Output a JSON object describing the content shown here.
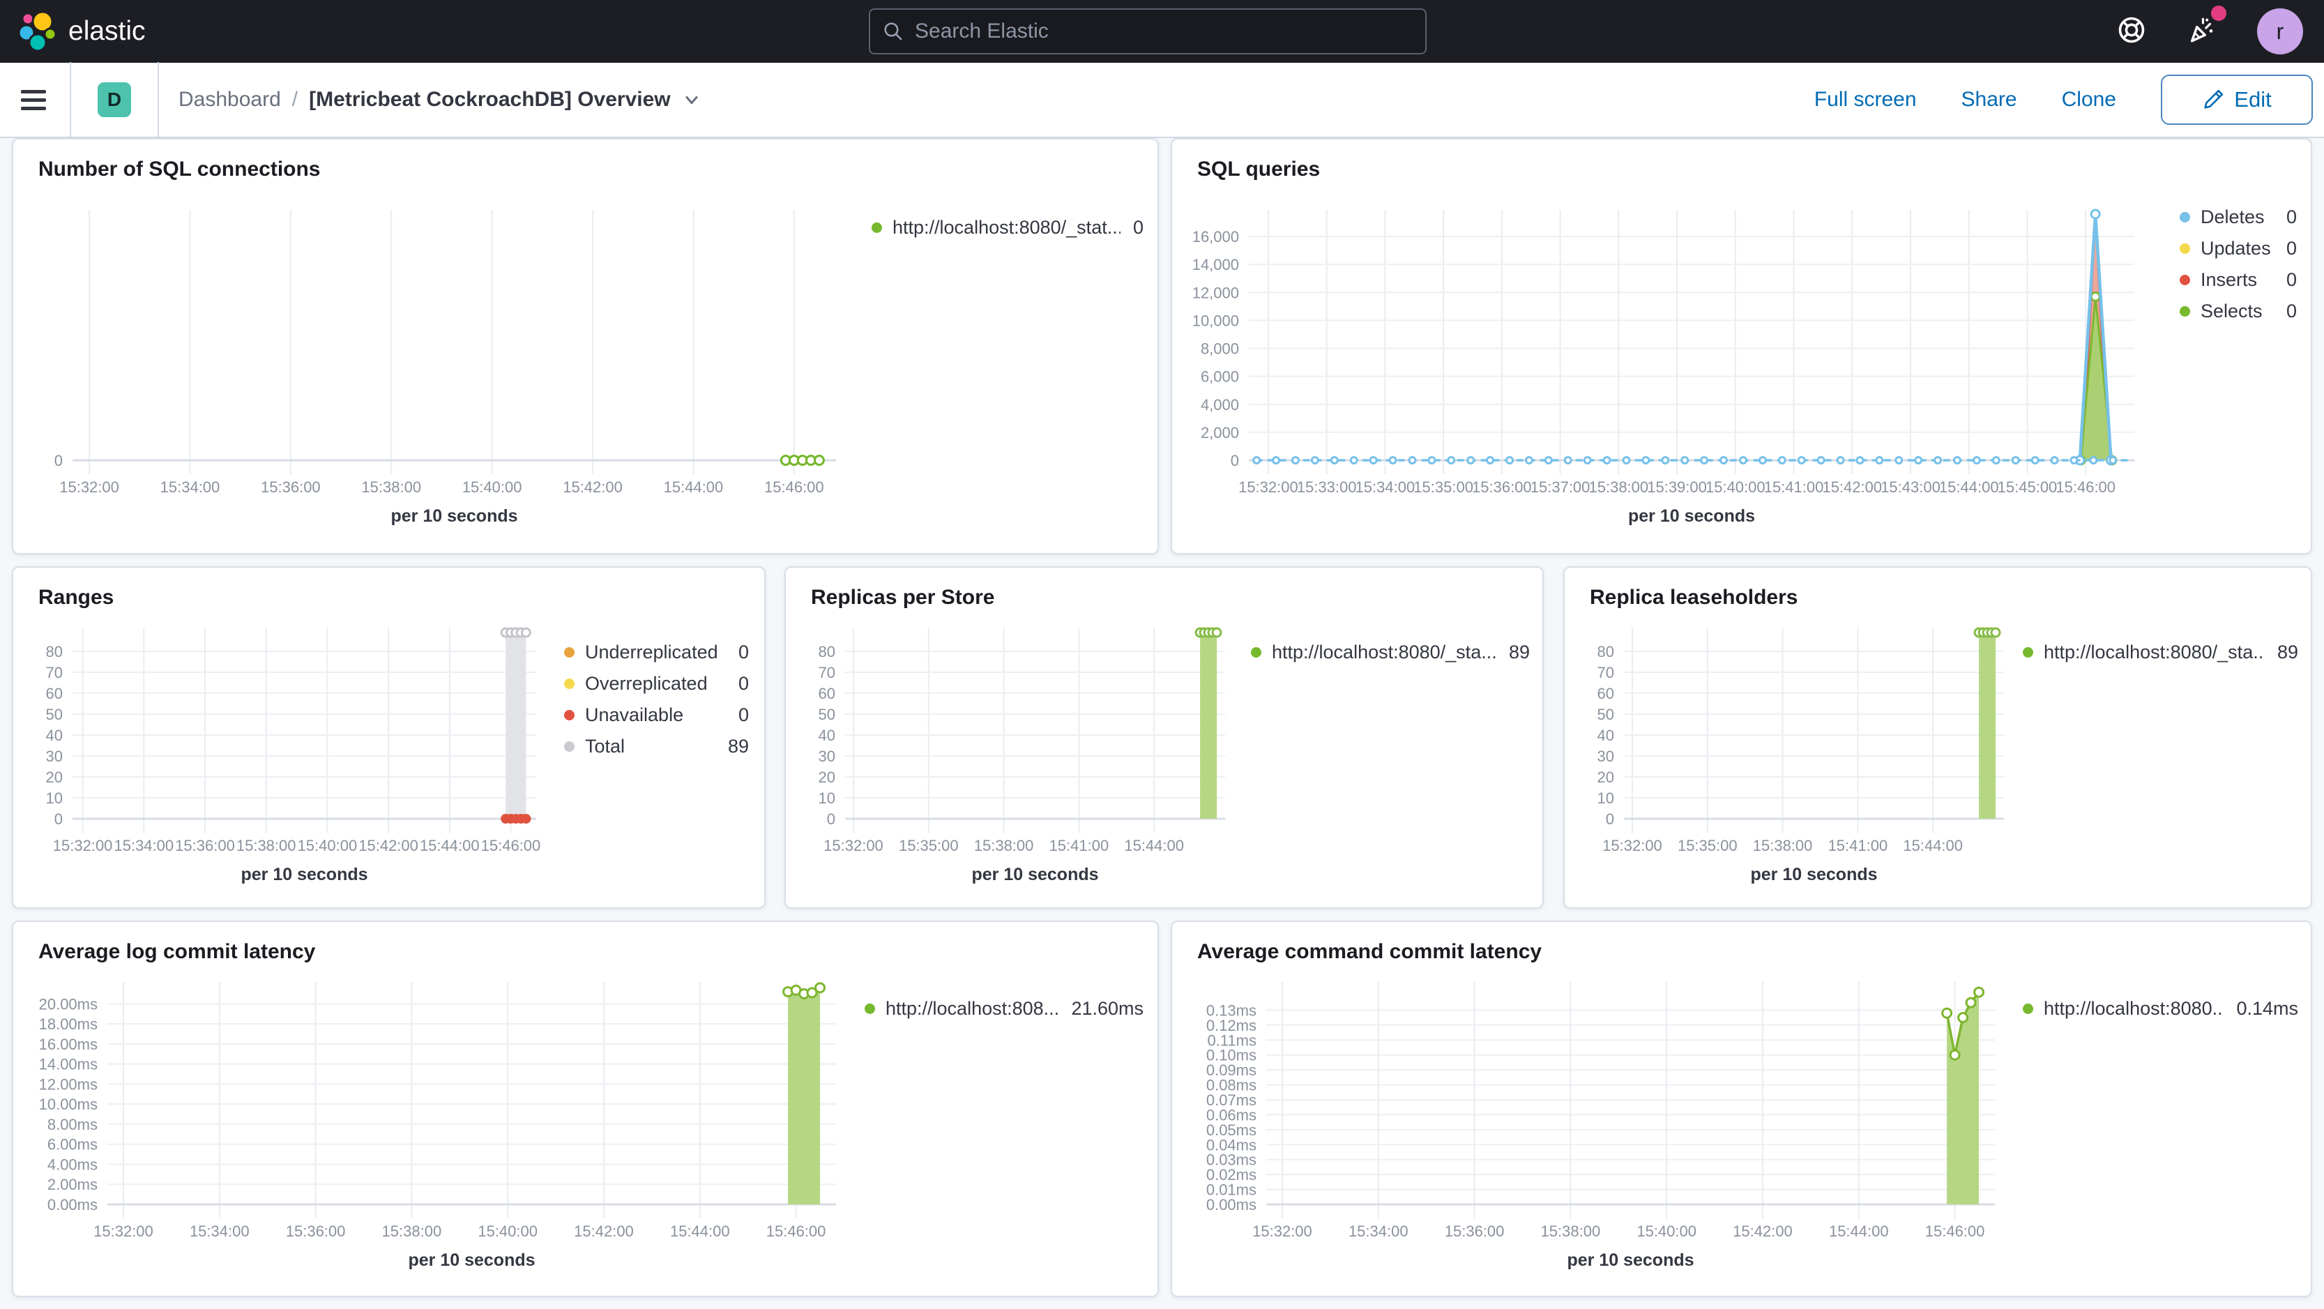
{
  "header": {
    "logo_text": "elastic",
    "search_placeholder": "Search Elastic",
    "avatar_initial": "r"
  },
  "toolbar": {
    "space_initial": "D",
    "breadcrumb_root": "Dashboard",
    "breadcrumb_sep": "/",
    "title": "[Metricbeat CockroachDB] Overview",
    "actions": [
      "Full screen",
      "Share",
      "Clone"
    ],
    "edit_label": "Edit"
  },
  "colors": {
    "header_bg": "#1D1E24",
    "primary_blue": "#006BB4",
    "badge_teal": "#4DC3AE",
    "accent_pink": "#E23D81",
    "avatar_purple": "#C9A4E8",
    "series_green": "#77B92E",
    "series_blue": "#76C1EA",
    "series_red": "#E0523F",
    "series_yellow": "#F3D94B",
    "series_orange": "#E8A23C",
    "series_gray": "#C9CBD0"
  },
  "panels": [
    {
      "title": "Number of SQL connections",
      "legend": {
        "items": [
          {
            "label": "http://localhost:8080/_stat...",
            "value": "0",
            "color": "#77B92E"
          }
        ]
      }
    },
    {
      "title": "SQL queries",
      "legend": {
        "items": [
          {
            "label": "Deletes",
            "value": "0",
            "color": "#76C1EA"
          },
          {
            "label": "Updates",
            "value": "0",
            "color": "#F3D94B"
          },
          {
            "label": "Inserts",
            "value": "0",
            "color": "#E0523F"
          },
          {
            "label": "Selects",
            "value": "0",
            "color": "#77B92E"
          }
        ]
      }
    },
    {
      "title": "Ranges",
      "legend": {
        "items": [
          {
            "label": "Underreplicated",
            "value": "0",
            "color": "#E8A23C"
          },
          {
            "label": "Overreplicated",
            "value": "0",
            "color": "#F3D94B"
          },
          {
            "label": "Unavailable",
            "value": "0",
            "color": "#E0523F"
          },
          {
            "label": "Total",
            "value": "89",
            "color": "#C9CBD0"
          }
        ]
      }
    },
    {
      "title": "Replicas per Store",
      "legend": {
        "items": [
          {
            "label": "http://localhost:8080/_sta...",
            "value": "89",
            "color": "#77B92E"
          }
        ]
      }
    },
    {
      "title": "Replica leaseholders",
      "legend": {
        "items": [
          {
            "label": "http://localhost:8080/_sta...",
            "value": "89",
            "color": "#77B92E"
          }
        ]
      }
    },
    {
      "title": "Average log commit latency",
      "legend": {
        "items": [
          {
            "label": "http://localhost:808...",
            "value": "21.60ms",
            "color": "#77B92E"
          }
        ]
      }
    },
    {
      "title": "Average command commit latency",
      "legend": {
        "items": [
          {
            "label": "http://localhost:8080...",
            "value": "0.14ms",
            "color": "#77B92E"
          }
        ]
      }
    }
  ],
  "chart_data": [
    {
      "id": "sql-connections",
      "type": "line",
      "title": "Number of SQL connections",
      "xlabel": "per 10 seconds",
      "x_domain": [
        "15:31:40",
        "15:46:50"
      ],
      "ylim": [
        0,
        1
      ],
      "y_max": 1,
      "x_ticks": [
        "15:32:00",
        "15:34:00",
        "15:36:00",
        "15:38:00",
        "15:40:00",
        "15:42:00",
        "15:44:00",
        "15:46:00"
      ],
      "y_ticks": [
        {
          "label": "0",
          "v": 0
        }
      ],
      "series": [
        {
          "name": "http://localhost:8080/_stat...",
          "type": "line",
          "stroke": "#74B62B",
          "width": 4,
          "markers": "hollow",
          "marker_r": 6.5,
          "points": [
            [
              "15:45:50",
              0
            ],
            [
              "15:46:00",
              0
            ],
            [
              "15:46:10",
              0
            ],
            [
              "15:46:20",
              0
            ],
            [
              "15:46:30",
              0
            ]
          ]
        }
      ]
    },
    {
      "id": "sql-queries",
      "type": "area",
      "title": "SQL queries",
      "xlabel": "per 10 seconds",
      "x_domain": [
        "15:31:40",
        "15:46:50"
      ],
      "ylim": [
        0,
        17700
      ],
      "y_max": 17700,
      "x_ticks": [
        "15:32:00",
        "15:33:00",
        "15:34:00",
        "15:35:00",
        "15:36:00",
        "15:37:00",
        "15:38:00",
        "15:39:00",
        "15:40:00",
        "15:41:00",
        "15:42:00",
        "15:43:00",
        "15:44:00",
        "15:45:00",
        "15:46:00"
      ],
      "y_ticks": [
        {
          "label": "0",
          "v": 0
        },
        {
          "label": "2,000",
          "v": 2000
        },
        {
          "label": "4,000",
          "v": 4000
        },
        {
          "label": "6,000",
          "v": 6000
        },
        {
          "label": "8,000",
          "v": 8000
        },
        {
          "label": "10,000",
          "v": 10000
        },
        {
          "label": "12,000",
          "v": 12000
        },
        {
          "label": "14,000",
          "v": 14000
        },
        {
          "label": "16,000",
          "v": 16000
        }
      ],
      "series": [
        {
          "name": "Updates",
          "type": "area",
          "stroke": "#E8C22C",
          "width": 2.5,
          "fill": "#F3D94B",
          "fill_opacity": 1,
          "points": [
            [
              "15:45:58",
              0
            ],
            [
              "15:46:10",
              16900
            ],
            [
              "15:46:22",
              0
            ]
          ]
        },
        {
          "name": "Inserts",
          "type": "area",
          "stroke": "#D4604F",
          "width": 2.5,
          "fill": "#F0A79B",
          "fill_opacity": 1,
          "points": [
            [
              "15:45:57",
              0
            ],
            [
              "15:46:10",
              17350
            ],
            [
              "15:46:23",
              0
            ]
          ]
        },
        {
          "name": "Selects",
          "type": "area",
          "stroke": "#7FB62F",
          "width": 3,
          "fill": "#ABD073",
          "fill_opacity": 1,
          "markers": "hollow",
          "marker_r": 6,
          "points": [
            [
              "15:45:55",
              0
            ],
            [
              "15:46:10",
              11700
            ],
            [
              "15:46:27",
              0
            ]
          ]
        },
        {
          "name": "Deletes",
          "type": "line",
          "stroke": "#76C1EA",
          "width": 4.5,
          "markers": "hollow",
          "marker_r": 6,
          "points": [
            [
              "15:45:54",
              0
            ],
            [
              "15:46:10",
              17600
            ],
            [
              "15:46:26",
              0
            ]
          ]
        },
        {
          "name": "Deletes",
          "type": "line",
          "stroke": "#76C1EA",
          "width": 3.5,
          "dashed": true,
          "markers": "hollow",
          "marker_r": 4.5,
          "marker_every": 20,
          "points": [
            [
              "15:31:48",
              0
            ],
            [
              "15:46:44",
              0
            ]
          ]
        }
      ]
    },
    {
      "id": "ranges",
      "type": "area",
      "title": "Ranges",
      "xlabel": "per 10 seconds",
      "x_domain": [
        "15:31:40",
        "15:46:50"
      ],
      "ylim": [
        0,
        90
      ],
      "y_max": 90,
      "x_ticks": [
        "15:32:00",
        "15:34:00",
        "15:36:00",
        "15:38:00",
        "15:40:00",
        "15:42:00",
        "15:44:00",
        "15:46:00"
      ],
      "y_ticks": [
        {
          "label": "0",
          "v": 0
        },
        {
          "label": "10",
          "v": 10
        },
        {
          "label": "20",
          "v": 20
        },
        {
          "label": "30",
          "v": 30
        },
        {
          "label": "40",
          "v": 40
        },
        {
          "label": "50",
          "v": 50
        },
        {
          "label": "60",
          "v": 60
        },
        {
          "label": "70",
          "v": 70
        },
        {
          "label": "80",
          "v": 80
        }
      ],
      "series": [
        {
          "name": "Total",
          "type": "area",
          "stroke": "#DCDDE1",
          "width": 2,
          "fill": "#E2E3E6",
          "fill_opacity": 1,
          "markers": "hollow",
          "marker_r": 6,
          "marker_stroke": "#C2C4C9",
          "points": [
            [
              "15:45:50",
              89
            ],
            [
              "15:46:00",
              89
            ],
            [
              "15:46:10",
              89
            ],
            [
              "15:46:20",
              89
            ],
            [
              "15:46:30",
              89
            ]
          ]
        },
        {
          "name": "Underreplicated",
          "type": "line",
          "stroke": "#E8A23C",
          "width": 4,
          "markers": "solid",
          "marker_r": 6,
          "points": [
            [
              "15:45:50",
              0
            ],
            [
              "15:46:00",
              0
            ],
            [
              "15:46:10",
              0
            ],
            [
              "15:46:20",
              0
            ],
            [
              "15:46:30",
              0
            ]
          ]
        },
        {
          "name": "Overreplicated",
          "type": "line",
          "stroke": "#F3D94B",
          "width": 4,
          "markers": "solid",
          "marker_r": 6,
          "points": [
            [
              "15:45:50",
              0
            ],
            [
              "15:46:00",
              0
            ],
            [
              "15:46:10",
              0
            ],
            [
              "15:46:20",
              0
            ],
            [
              "15:46:30",
              0
            ]
          ]
        },
        {
          "name": "Unavailable",
          "type": "line",
          "stroke": "#E0523F",
          "width": 4,
          "markers": "solid",
          "marker_r": 7,
          "points": [
            [
              "15:45:50",
              0
            ],
            [
              "15:46:00",
              0
            ],
            [
              "15:46:10",
              0
            ],
            [
              "15:46:20",
              0
            ],
            [
              "15:46:30",
              0
            ]
          ]
        }
      ]
    },
    {
      "id": "replicas-per-store",
      "type": "area",
      "title": "Replicas per Store",
      "xlabel": "per 10 seconds",
      "x_domain": [
        "15:31:40",
        "15:46:50"
      ],
      "ylim": [
        0,
        90
      ],
      "y_max": 90,
      "x_ticks": [
        "15:32:00",
        "15:35:00",
        "15:38:00",
        "15:41:00",
        "15:44:00"
      ],
      "y_ticks": [
        {
          "label": "0",
          "v": 0
        },
        {
          "label": "10",
          "v": 10
        },
        {
          "label": "20",
          "v": 20
        },
        {
          "label": "30",
          "v": 30
        },
        {
          "label": "40",
          "v": 40
        },
        {
          "label": "50",
          "v": 50
        },
        {
          "label": "60",
          "v": 60
        },
        {
          "label": "70",
          "v": 70
        },
        {
          "label": "80",
          "v": 80
        }
      ],
      "series": [
        {
          "name": "http://localhost:8080/_sta...",
          "type": "area",
          "stroke": "#A9CD74",
          "width": 2,
          "fill": "#B5D784",
          "fill_opacity": 1,
          "markers": "hollow",
          "marker_r": 6,
          "marker_stroke": "#85BC47",
          "points": [
            [
              "15:45:50",
              89
            ],
            [
              "15:46:00",
              89
            ],
            [
              "15:46:10",
              89
            ],
            [
              "15:46:20",
              89
            ],
            [
              "15:46:30",
              89
            ]
          ]
        }
      ]
    },
    {
      "id": "replica-leaseholders",
      "type": "area",
      "title": "Replica leaseholders",
      "xlabel": "per 10 seconds",
      "x_domain": [
        "15:31:40",
        "15:46:50"
      ],
      "ylim": [
        0,
        90
      ],
      "y_max": 90,
      "x_ticks": [
        "15:32:00",
        "15:35:00",
        "15:38:00",
        "15:41:00",
        "15:44:00"
      ],
      "y_ticks": [
        {
          "label": "0",
          "v": 0
        },
        {
          "label": "10",
          "v": 10
        },
        {
          "label": "20",
          "v": 20
        },
        {
          "label": "30",
          "v": 30
        },
        {
          "label": "40",
          "v": 40
        },
        {
          "label": "50",
          "v": 50
        },
        {
          "label": "60",
          "v": 60
        },
        {
          "label": "70",
          "v": 70
        },
        {
          "label": "80",
          "v": 80
        }
      ],
      "series": [
        {
          "name": "http://localhost:8080/_sta...",
          "type": "area",
          "stroke": "#A9CD74",
          "width": 2,
          "fill": "#B5D784",
          "fill_opacity": 1,
          "markers": "hollow",
          "marker_r": 6,
          "marker_stroke": "#85BC47",
          "points": [
            [
              "15:45:50",
              89
            ],
            [
              "15:46:00",
              89
            ],
            [
              "15:46:10",
              89
            ],
            [
              "15:46:20",
              89
            ],
            [
              "15:46:30",
              89
            ]
          ]
        }
      ]
    },
    {
      "id": "avg-log-commit-latency",
      "type": "area",
      "title": "Average log commit latency",
      "xlabel": "per 10 seconds",
      "x_domain": [
        "15:31:40",
        "15:46:50"
      ],
      "ylim": [
        0,
        21.9
      ],
      "y_max": 21.9,
      "x_ticks": [
        "15:32:00",
        "15:34:00",
        "15:36:00",
        "15:38:00",
        "15:40:00",
        "15:42:00",
        "15:44:00",
        "15:46:00"
      ],
      "y_ticks": [
        {
          "label": "0.00ms",
          "v": 0
        },
        {
          "label": "2.00ms",
          "v": 2
        },
        {
          "label": "4.00ms",
          "v": 4
        },
        {
          "label": "6.00ms",
          "v": 6
        },
        {
          "label": "8.00ms",
          "v": 8
        },
        {
          "label": "10.00ms",
          "v": 10
        },
        {
          "label": "12.00ms",
          "v": 12
        },
        {
          "label": "14.00ms",
          "v": 14
        },
        {
          "label": "16.00ms",
          "v": 16
        },
        {
          "label": "18.00ms",
          "v": 18
        },
        {
          "label": "20.00ms",
          "v": 20
        }
      ],
      "series": [
        {
          "name": "http://localhost:808...",
          "type": "area",
          "stroke": "#7FB62F",
          "width": 3.5,
          "fill": "#B5D784",
          "fill_opacity": 1,
          "markers": "hollow",
          "marker_r": 6.5,
          "points": [
            [
              "15:45:50",
              21.2
            ],
            [
              "15:46:00",
              21.35
            ],
            [
              "15:46:10",
              21.0
            ],
            [
              "15:46:20",
              21.1
            ],
            [
              "15:46:30",
              21.6
            ]
          ]
        }
      ]
    },
    {
      "id": "avg-command-commit-latency",
      "type": "area",
      "title": "Average command commit latency",
      "xlabel": "per 10 seconds",
      "x_domain": [
        "15:31:40",
        "15:46:50"
      ],
      "ylim": [
        0,
        0.147
      ],
      "y_max": 0.147,
      "x_ticks": [
        "15:32:00",
        "15:34:00",
        "15:36:00",
        "15:38:00",
        "15:40:00",
        "15:42:00",
        "15:44:00",
        "15:46:00"
      ],
      "y_ticks": [
        {
          "label": "0.00ms",
          "v": 0
        },
        {
          "label": "0.01ms",
          "v": 0.01
        },
        {
          "label": "0.02ms",
          "v": 0.02
        },
        {
          "label": "0.03ms",
          "v": 0.03
        },
        {
          "label": "0.04ms",
          "v": 0.04
        },
        {
          "label": "0.05ms",
          "v": 0.05
        },
        {
          "label": "0.06ms",
          "v": 0.06
        },
        {
          "label": "0.07ms",
          "v": 0.07
        },
        {
          "label": "0.08ms",
          "v": 0.08
        },
        {
          "label": "0.09ms",
          "v": 0.09
        },
        {
          "label": "0.10ms",
          "v": 0.1
        },
        {
          "label": "0.11ms",
          "v": 0.11
        },
        {
          "label": "0.12ms",
          "v": 0.12
        },
        {
          "label": "0.13ms",
          "v": 0.13
        }
      ],
      "series": [
        {
          "name": "http://localhost:8080...",
          "type": "area",
          "stroke": "#7FB62F",
          "width": 3.5,
          "fill": "#B5D784",
          "fill_opacity": 1,
          "markers": "hollow",
          "marker_r": 6.5,
          "points": [
            [
              "15:45:50",
              0.128
            ],
            [
              "15:46:00",
              0.1
            ],
            [
              "15:46:10",
              0.125
            ],
            [
              "15:46:20",
              0.135
            ],
            [
              "15:46:30",
              0.142
            ]
          ]
        }
      ]
    }
  ]
}
